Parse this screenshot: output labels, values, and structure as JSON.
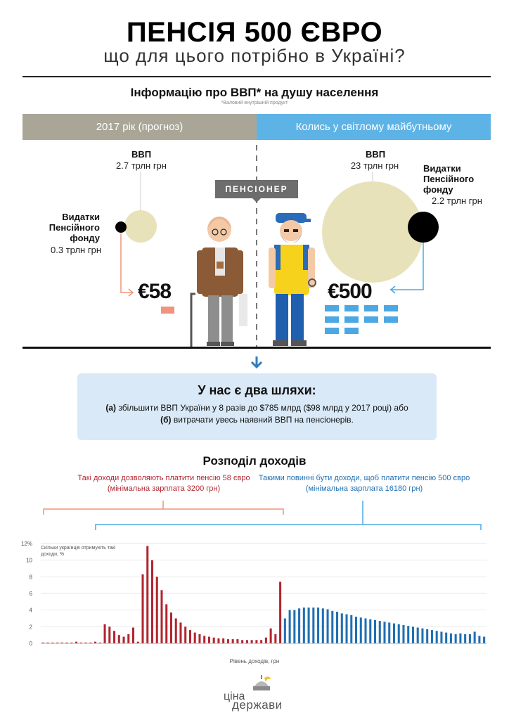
{
  "header": {
    "title": "ПЕНСІЯ 500 ЄВРО",
    "subtitle": "що для цього потрібно в Україні?"
  },
  "gdp_section": {
    "heading": "Інформацію про ВВП* на душу населення",
    "footnote": "*Валовий внутрішній продукт",
    "left_band": "2017 рік (прогноз)",
    "right_band": "Колись у світлому майбутньому",
    "pensioner_tag": "ПЕНСІОНЕР",
    "left": {
      "gdp_label": "ВВП",
      "gdp_value": "2.7 трлн грн",
      "fund_label_1": "Видатки",
      "fund_label_2": "Пенсійного",
      "fund_label_3": "фонду",
      "fund_value": "0.3 трлн грн",
      "pension": "€58"
    },
    "right": {
      "gdp_label": "ВВП",
      "gdp_value": "23 трлн грн",
      "fund_label_1": "Видатки",
      "fund_label_2": "Пенсійного",
      "fund_label_3": "фонду",
      "fund_value": "2.2 трлн грн",
      "pension": "€500"
    },
    "colors": {
      "gray_band": "#a9a698",
      "blue_band": "#5eb3e6",
      "circle": "#e8e2bb",
      "salmon": "#f0937f",
      "blue_bills": "#4ba8e3"
    }
  },
  "paths": {
    "heading": "У нас є два шляхи:",
    "a_prefix": "(а)",
    "a_text": " збільшити ВВП України у 8 разів до $785 млрд ($98 млрд у 2017 році) або",
    "b_prefix": "(б)",
    "b_text": " витрачати увесь наявний ВВП на пенсіонерів."
  },
  "income": {
    "heading": "Розподіл доходів",
    "red_caption_1": "Такі доходи дозволяють платити пенсію 58 євро",
    "red_caption_2": "(мінімальна зарплата 3200 грн)",
    "blue_caption_1": "Такими повинні бути доходи, щоб платити пенсію 500 євро",
    "blue_caption_2": "(мінімальна зарплата 16180 грн)"
  },
  "chart_data": {
    "type": "bar",
    "ylabel": "Скільки українців отримують такі доходи, %",
    "xlabel": "Рівень доходів, грн",
    "ylim": [
      0,
      12
    ],
    "yticks": [
      "0",
      "2",
      "4",
      "6",
      "8",
      "10",
      "12%"
    ],
    "grid": true,
    "values": [
      0.1,
      0.1,
      0.1,
      0.1,
      0.1,
      0.1,
      0.1,
      0.2,
      0.1,
      0.1,
      0.1,
      0.2,
      0.1,
      2.3,
      2.0,
      1.5,
      1.0,
      0.8,
      1.1,
      1.9,
      0.2,
      8.3,
      11.7,
      10.0,
      8.0,
      6.4,
      4.7,
      3.7,
      3.0,
      2.5,
      2.0,
      1.6,
      1.3,
      1.1,
      0.9,
      0.8,
      0.7,
      0.6,
      0.6,
      0.5,
      0.5,
      0.5,
      0.4,
      0.4,
      0.4,
      0.4,
      0.4,
      0.7,
      1.8,
      1.1,
      7.4,
      3.0,
      4.0,
      4.0,
      4.2,
      4.3,
      4.3,
      4.3,
      4.3,
      4.2,
      4.1,
      3.9,
      3.8,
      3.6,
      3.5,
      3.4,
      3.2,
      3.1,
      3.0,
      2.9,
      2.8,
      2.7,
      2.6,
      2.5,
      2.4,
      2.3,
      2.2,
      2.1,
      2.0,
      1.9,
      1.8,
      1.7,
      1.6,
      1.5,
      1.4,
      1.3,
      1.2,
      1.1,
      1.2,
      1.1,
      1.1,
      1.4,
      0.9,
      0.8
    ],
    "red_count": 51,
    "colors": {
      "red": "#b2252f",
      "blue": "#1f6fb2",
      "grid": "#dddddd"
    }
  },
  "logo": {
    "line1": "ціна",
    "line2": "держави"
  }
}
